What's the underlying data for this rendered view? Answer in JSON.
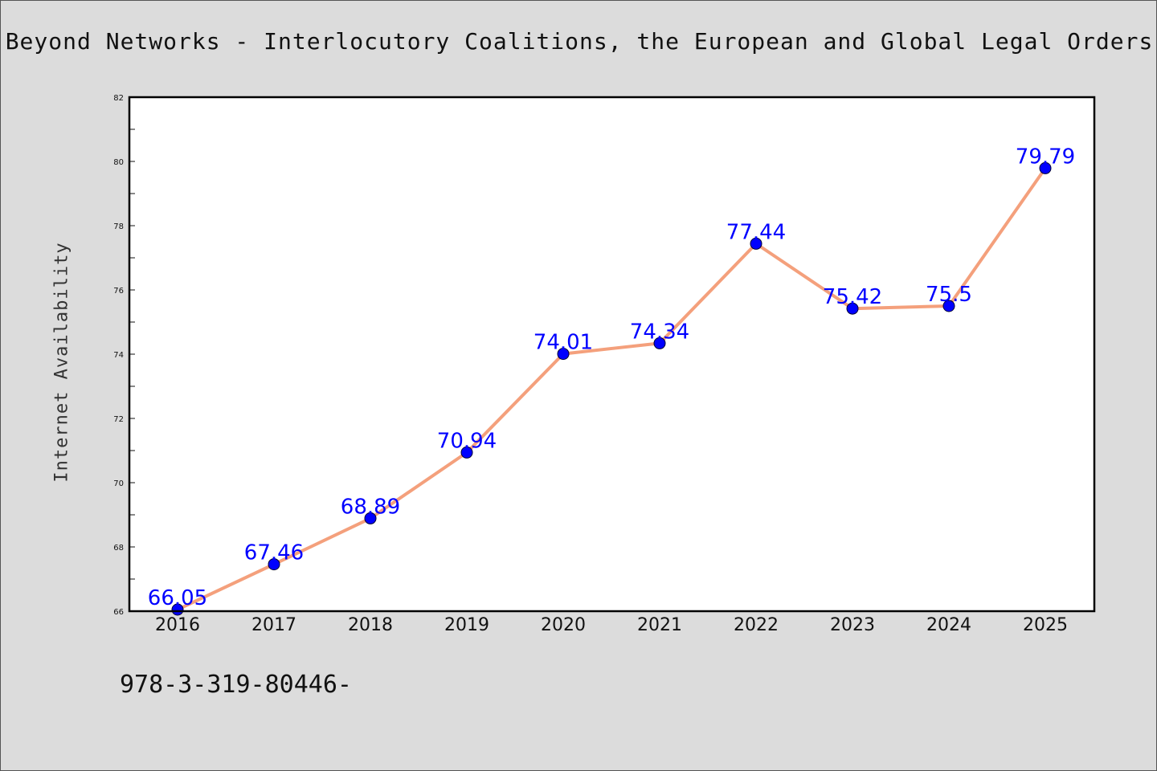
{
  "title": "Beyond Networks - Interlocutory Coalitions, the European and Global Legal Orders",
  "footer_text": "978-3-319-80446-",
  "colors": {
    "background": "#dcdcdc",
    "plot_background": "#ffffff",
    "line": "#f4a07c",
    "marker": "#0000ff",
    "data_label": "#0000ff"
  },
  "chart_data": {
    "type": "line",
    "title": "Beyond Networks - Interlocutory Coalitions, the European and Global Legal Orders",
    "xlabel": "",
    "ylabel": "Internet Availability",
    "categories": [
      "2016",
      "2017",
      "2018",
      "2019",
      "2020",
      "2021",
      "2022",
      "2023",
      "2024",
      "2025"
    ],
    "series": [
      {
        "values": [
          66.05,
          67.46,
          68.89,
          70.94,
          74.01,
          74.34,
          77.44,
          75.42,
          75.5,
          79.79
        ],
        "labels": [
          "66.05",
          "67.46",
          "68.89",
          "70.94",
          "74.01",
          "74.34",
          "77.44",
          "75.42",
          "75.5",
          "79.79"
        ]
      }
    ],
    "ylim": [
      66,
      82
    ],
    "yticks": [
      66,
      68,
      70,
      72,
      74,
      76,
      78,
      80,
      82
    ],
    "grid": false,
    "legend": "none",
    "marker": "circle"
  }
}
